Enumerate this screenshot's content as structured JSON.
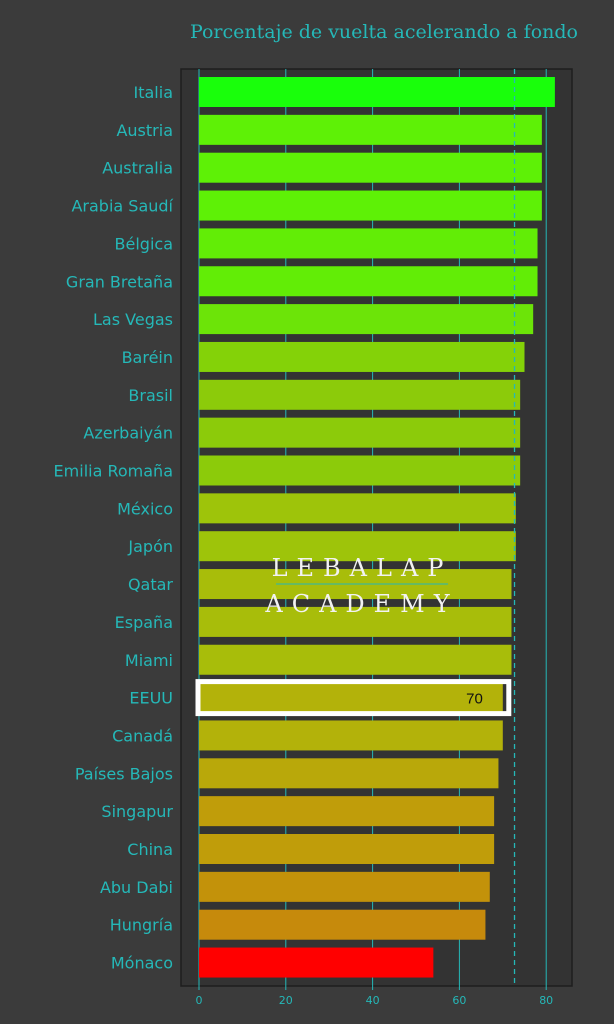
{
  "colors": {
    "background": "#3b3b3b",
    "panel": "#333333",
    "panel_border": "#1e1e1e",
    "accent_teal": "#25b8b8",
    "highlight_border": "#ffffff",
    "data_label": "#111111",
    "watermark": "#f2f2f2"
  },
  "watermark": {
    "line1": "LEBALAP",
    "line2": "ACADEMY"
  },
  "chart_data": {
    "type": "bar",
    "orientation": "horizontal",
    "title": "Porcentaje de vuelta acelerando a fondo",
    "xlabel": "",
    "ylabel": "",
    "xlim": [
      -3.5,
      86
    ],
    "x_ticks": [
      0,
      20,
      40,
      60,
      80
    ],
    "grid": true,
    "legend": "none",
    "reference_line": {
      "value": 72.7,
      "style": "dashed"
    },
    "highlight": {
      "category": "EEUU",
      "value_label": "70"
    },
    "categories": [
      "Italia",
      "Austria",
      "Australia",
      "Arabia Saudí",
      "Bélgica",
      "Gran Bretaña",
      "Las Vegas",
      "Baréin",
      "Brasil",
      "Azerbaiyán",
      "Emilia Romaña",
      "México",
      "Japón",
      "Qatar",
      "España",
      "Miami",
      "EEUU",
      "Canadá",
      "Países Bajos",
      "Singapur",
      "China",
      "Abu Dabi",
      "Hungría",
      "Mónaco"
    ],
    "values": [
      82,
      79,
      79,
      79,
      78,
      78,
      77,
      75,
      74,
      74,
      74,
      73,
      73,
      72,
      72,
      72,
      70,
      70,
      69,
      68,
      68,
      67,
      66,
      54
    ],
    "bar_colors": [
      "#19ff0b",
      "#5ef106",
      "#5ef106",
      "#5ef106",
      "#62ed06",
      "#62ed06",
      "#6ce408",
      "#84d208",
      "#8ccb0a",
      "#8ccb0a",
      "#8ccb0a",
      "#9ec40a",
      "#9ec40a",
      "#a8bd0a",
      "#a8bd0a",
      "#a8bd0a",
      "#b3b20a",
      "#b3b20a",
      "#b9a80a",
      "#c09d0a",
      "#c09d0a",
      "#c3920a",
      "#c68a0c",
      "#ff0000"
    ]
  }
}
